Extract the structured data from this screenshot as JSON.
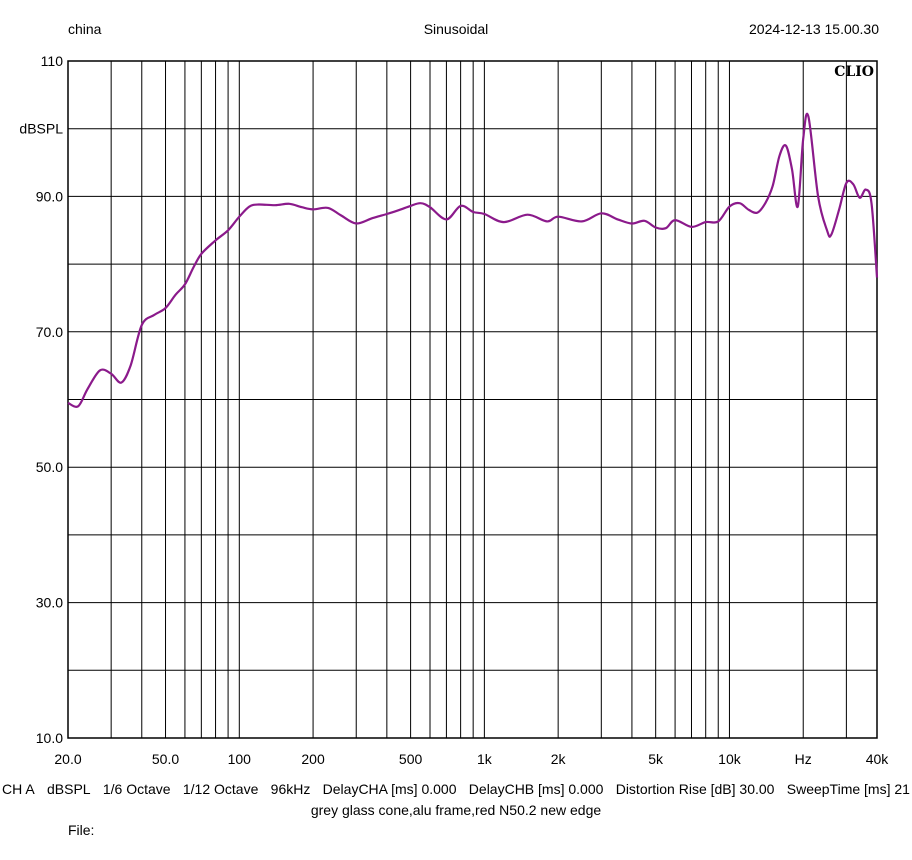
{
  "header": {
    "left": "china",
    "center": "Sinusoidal",
    "right": "2024-12-13 15.00.30"
  },
  "logo": "CLIO",
  "footer": {
    "items": [
      "CH A",
      "dBSPL",
      "1/6 Octave",
      "1/12 Octave",
      "96kHz",
      "DelayCHA [ms] 0.000",
      "DelayCHB [ms] 0.000",
      "Distortion Rise [dB] 30.00",
      "SweepTime [ms] 21"
    ],
    "description": "grey glass cone,alu frame,red N50.2 new edge",
    "file_label": "File:"
  },
  "colors": {
    "trace": "#8b1a8b",
    "grid": "#000000",
    "background": "#ffffff"
  },
  "chart_data": {
    "type": "line",
    "x_scale": "log",
    "xlim": [
      20,
      40000
    ],
    "ylim": [
      10,
      110
    ],
    "ylabel": "dBSPL",
    "xlabel": "Hz",
    "grid": true,
    "y_ticks": [
      {
        "value": 110,
        "label": "110"
      },
      {
        "value": 100,
        "label": "dBSPL"
      },
      {
        "value": 90,
        "label": "90.0"
      },
      {
        "value": 70,
        "label": "70.0"
      },
      {
        "value": 50,
        "label": "50.0"
      },
      {
        "value": 30,
        "label": "30.0"
      },
      {
        "value": 10,
        "label": "10.0"
      }
    ],
    "x_ticks": [
      {
        "value": 20,
        "label": "20.0"
      },
      {
        "value": 50,
        "label": "50.0"
      },
      {
        "value": 100,
        "label": "100"
      },
      {
        "value": 200,
        "label": "200"
      },
      {
        "value": 500,
        "label": "500"
      },
      {
        "value": 1000,
        "label": "1k"
      },
      {
        "value": 2000,
        "label": "2k"
      },
      {
        "value": 5000,
        "label": "5k"
      },
      {
        "value": 10000,
        "label": "10k"
      },
      {
        "value": 20000,
        "label": "Hz"
      },
      {
        "value": 40000,
        "label": "40k"
      }
    ],
    "series": [
      {
        "color": "#8b1a8b",
        "x": [
          20,
          22,
          24,
          27,
          30,
          33,
          36,
          40,
          45,
          50,
          55,
          60,
          65,
          70,
          80,
          90,
          100,
          110,
          120,
          140,
          160,
          180,
          200,
          230,
          260,
          300,
          350,
          400,
          450,
          500,
          550,
          600,
          700,
          800,
          900,
          1000,
          1200,
          1500,
          1800,
          2000,
          2500,
          3000,
          3500,
          4000,
          4500,
          5000,
          5500,
          6000,
          7000,
          8000,
          9000,
          10000,
          11000,
          12000,
          13000,
          14000,
          15000,
          16000,
          17000,
          18000,
          19000,
          20000,
          21000,
          23000,
          25000,
          26000,
          28000,
          30000,
          32000,
          34000,
          36000,
          38000,
          40000
        ],
        "y": [
          59.5,
          59.0,
          61.5,
          64.3,
          63.8,
          62.5,
          65.0,
          71.0,
          72.5,
          73.5,
          75.5,
          77.0,
          79.5,
          81.5,
          83.5,
          85.0,
          87.0,
          88.5,
          88.8,
          88.7,
          88.9,
          88.4,
          88.1,
          88.3,
          87.2,
          86.0,
          86.8,
          87.4,
          88.0,
          88.6,
          89.0,
          88.4,
          86.6,
          88.6,
          87.7,
          87.4,
          86.2,
          87.3,
          86.3,
          87.0,
          86.3,
          87.5,
          86.6,
          86.0,
          86.4,
          85.4,
          85.3,
          86.5,
          85.5,
          86.2,
          86.3,
          88.5,
          89.0,
          88.0,
          87.6,
          89.0,
          91.5,
          96.0,
          97.5,
          94.0,
          88.5,
          98.5,
          101.8,
          90.0,
          85.0,
          84.3,
          88.0,
          92.0,
          91.8,
          89.8,
          91.0,
          89.0,
          78.0
        ]
      }
    ]
  }
}
